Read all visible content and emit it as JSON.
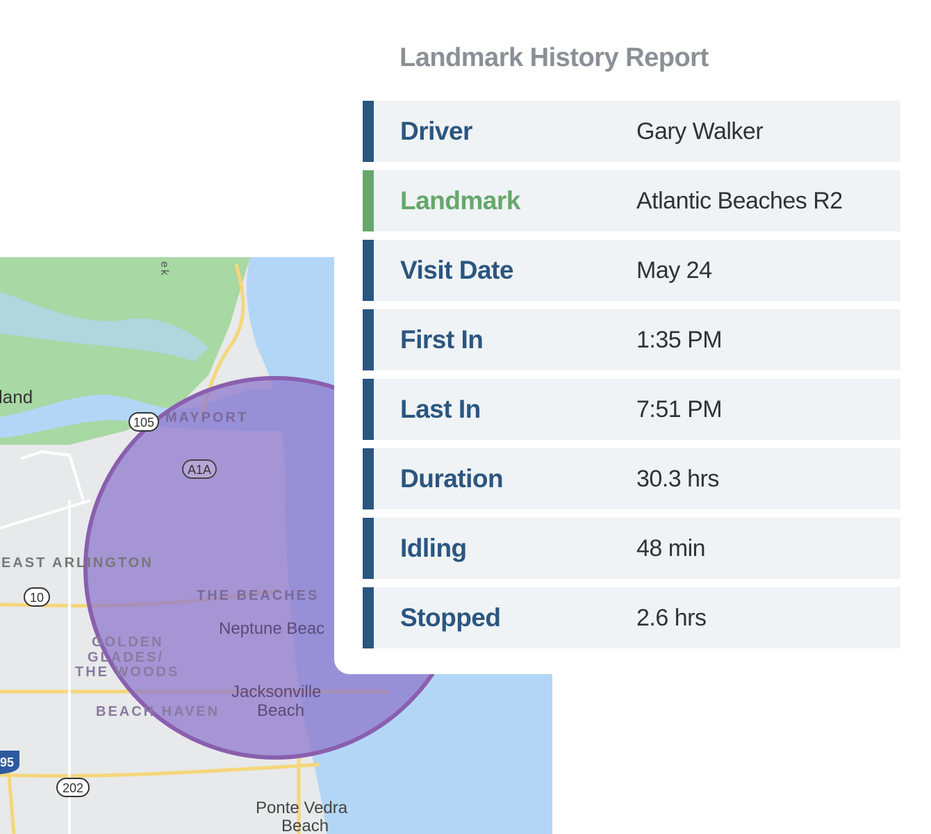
{
  "report": {
    "title": "Landmark History Report",
    "rows": [
      {
        "label": "Driver",
        "value": "Gary Walker",
        "accent": "#2b5680"
      },
      {
        "label": "Landmark",
        "value": "Atlantic Beaches R2",
        "accent": "#66a76a"
      },
      {
        "label": "Visit Date",
        "value": "May 24",
        "accent": "#2b5680"
      },
      {
        "label": "First In",
        "value": "1:35 PM",
        "accent": "#2b5680"
      },
      {
        "label": "Last In",
        "value": "7:51 PM",
        "accent": "#2b5680"
      },
      {
        "label": "Duration",
        "value": "30.3 hrs",
        "accent": "#2b5680"
      },
      {
        "label": "Idling",
        "value": "48 min",
        "accent": "#2b5680"
      },
      {
        "label": "Stopped",
        "value": "2.6 hrs",
        "accent": "#2b5680"
      }
    ]
  },
  "map": {
    "labels": {
      "land": "land",
      "ek": "ek",
      "mayport": "MAYPORT",
      "east_arlington": "EAST ARLINGTON",
      "the_beaches": "THE BEACHES",
      "neptune": "Neptune Beac",
      "golden1": "GOLDEN",
      "golden2": "GLADES/",
      "golden3": "THE WOODS",
      "jax1": "Jacksonville",
      "jax2": "Beach",
      "beach_haven": "BEACH HAVEN",
      "ponte1": "Ponte Vedra",
      "ponte2": "Beach"
    },
    "shields": {
      "r105": "105",
      "a1a": "A1A",
      "r10": "10",
      "i95": "95",
      "r202": "202"
    },
    "geofence_color": "#8a5fae"
  }
}
